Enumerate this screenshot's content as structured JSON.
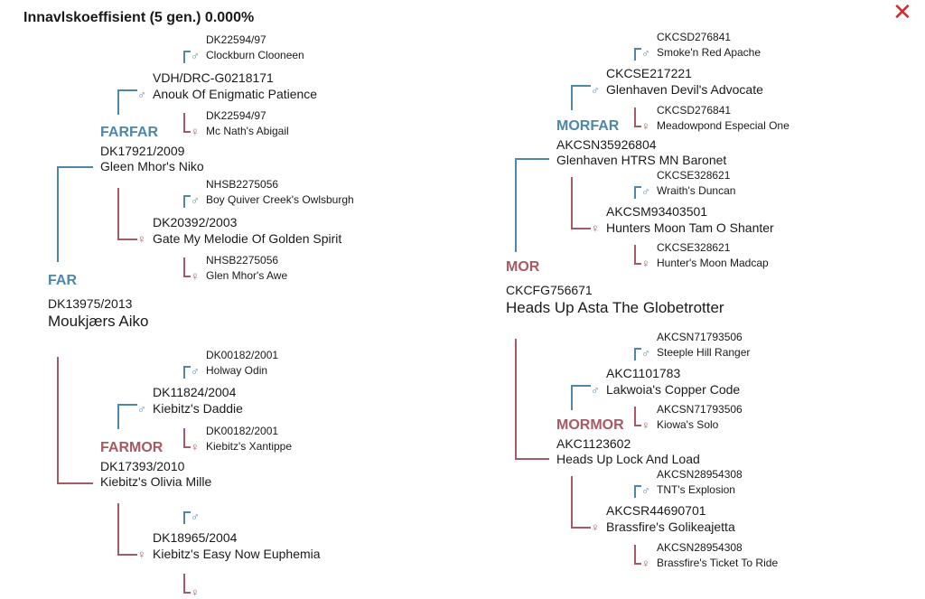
{
  "title": "Innavlskoeffisient (5 gen.) 0.000%",
  "close_icon": "close-icon",
  "colors": {
    "male": "#4f87a8",
    "female": "#a85a62",
    "close": "#d8262b"
  },
  "pedigree": {
    "far": {
      "label": "FAR",
      "reg": "DK13975/2013",
      "name": "Moukjærs Aiko",
      "farfar": {
        "label": "FARFAR",
        "reg": "DK17921/2009",
        "name": "Gleen Mhor's Niko",
        "sire": {
          "reg": "VDH/DRC-G0218171",
          "name": "Anouk Of Enigmatic Patience",
          "sire": {
            "reg": "DK22594/97",
            "name": "Clockburn Clooneen"
          },
          "dam": {
            "reg": "DK22594/97",
            "name": "Mc Nath's Abigail"
          }
        },
        "dam": {
          "reg": "DK20392/2003",
          "name": "Gate My Melodie Of Golden Spirit",
          "sire": {
            "reg": "NHSB2275056",
            "name": "Boy Quiver Creek's Owlsburgh"
          },
          "dam": {
            "reg": "NHSB2275056",
            "name": "Glen Mhor's Awe"
          }
        }
      },
      "farmor": {
        "label": "FARMOR",
        "reg": "DK17393/2010",
        "name": "Kiebitz's Olivia Mille",
        "sire": {
          "reg": "DK11824/2004",
          "name": "Kiebitz's Daddie",
          "sire": {
            "reg": "DK00182/2001",
            "name": "Holway Odin"
          },
          "dam": {
            "reg": "DK00182/2001",
            "name": "Kiebitz's Xantippe"
          }
        },
        "dam": {
          "reg": "DK18965/2004",
          "name": "Kiebitz's Easy Now Euphemia",
          "sire": {
            "reg": "",
            "name": ""
          },
          "dam": {
            "reg": "",
            "name": ""
          }
        }
      }
    },
    "mor": {
      "label": "MOR",
      "reg": "CKCFG756671",
      "name": "Heads Up Asta The Globetrotter",
      "morfar": {
        "label": "MORFAR",
        "reg": "AKCSN35926804",
        "name": "Glenhaven HTRS MN Baronet",
        "sire": {
          "reg": "CKCSE217221",
          "name": "Glenhaven Devil's Advocate",
          "sire": {
            "reg": "CKCSD276841",
            "name": "Smoke'n Red Apache"
          },
          "dam": {
            "reg": "CKCSD276841",
            "name": "Meadowpond Especial One"
          }
        },
        "dam": {
          "reg": "AKCSM93403501",
          "name": "Hunters Moon Tam O Shanter",
          "sire": {
            "reg": "CKCSE328621",
            "name": "Wraith's Duncan"
          },
          "dam": {
            "reg": "CKCSE328621",
            "name": "Hunter's Moon Madcap"
          }
        }
      },
      "mormor": {
        "label": "MORMOR",
        "reg": "AKC1123602",
        "name": "Heads Up Lock And Load",
        "sire": {
          "reg": "AKC1101783",
          "name": "Lakwoia's Copper Code",
          "sire": {
            "reg": "AKCSN71793506",
            "name": "Steeple Hill Ranger"
          },
          "dam": {
            "reg": "AKCSN71793506",
            "name": "Kiowa's Solo"
          }
        },
        "dam": {
          "reg": "AKCSR44690701",
          "name": "Brassfire's Golikeajetta",
          "sire": {
            "reg": "AKCSN28954308",
            "name": "TNT's Explosion"
          },
          "dam": {
            "reg": "AKCSN28954308",
            "name": "Brassfire's Ticket To Ride"
          }
        }
      }
    }
  }
}
